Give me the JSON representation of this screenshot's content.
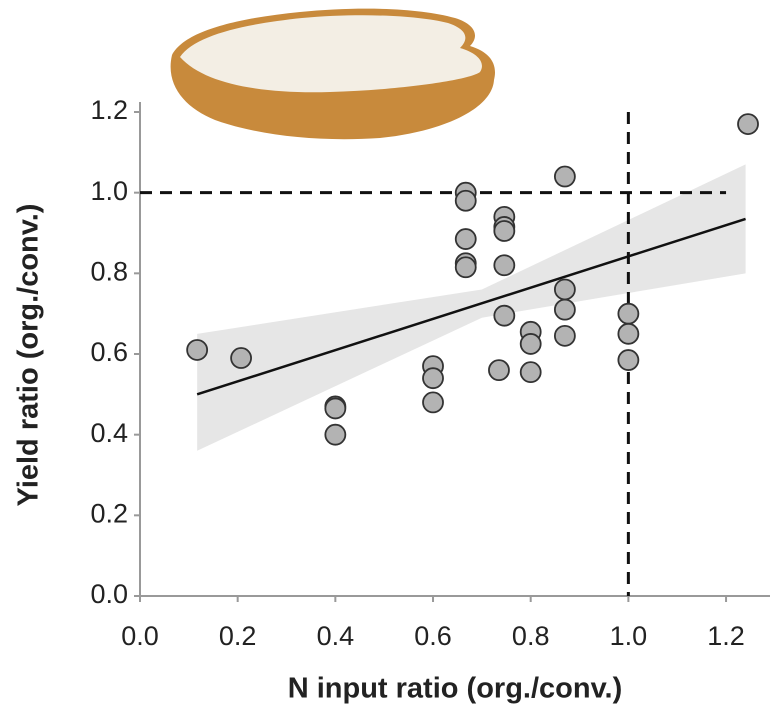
{
  "chart_data": {
    "type": "scatter",
    "xlabel": "N input ratio (org./conv.)",
    "ylabel": "Yield ratio (org./conv.)",
    "x": [
      0.117,
      0.207,
      0.4,
      0.4,
      0.4,
      0.6,
      0.6,
      0.6,
      0.667,
      0.667,
      0.667,
      0.667,
      0.667,
      0.735,
      0.746,
      0.746,
      0.746,
      0.746,
      0.746,
      0.8,
      0.8,
      0.8,
      0.87,
      0.87,
      0.87,
      0.87,
      1.0,
      1.0,
      1.0,
      1.245
    ],
    "values": [
      0.61,
      0.59,
      0.47,
      0.465,
      0.4,
      0.57,
      0.54,
      0.48,
      1.0,
      0.98,
      0.885,
      0.825,
      0.815,
      0.56,
      0.94,
      0.915,
      0.905,
      0.82,
      0.695,
      0.655,
      0.625,
      0.555,
      1.04,
      0.76,
      0.71,
      0.645,
      0.7,
      0.65,
      0.585,
      1.17
    ],
    "color": "#b3b3b3",
    "trend": {
      "x": [
        0.117,
        1.24
      ],
      "y": [
        0.5,
        0.935
      ]
    },
    "band": {
      "x": [
        0.117,
        0.7,
        1.24
      ],
      "lower": [
        0.36,
        0.69,
        0.8
      ],
      "upper": [
        0.65,
        0.76,
        1.07
      ]
    },
    "hline": 1.0,
    "vline": 1.0,
    "xlim": [
      0,
      1.29
    ],
    "ylim": [
      0,
      1.2
    ],
    "xticks": [
      {
        "value": 0,
        "label": "0.0"
      },
      0.2,
      0.4,
      0.6,
      0.8,
      {
        "value": 1,
        "label": "1.0"
      },
      1.2
    ],
    "yticks": [
      {
        "value": 0,
        "label": "0.0"
      },
      0.2,
      0.4,
      0.6,
      0.8,
      {
        "value": 1,
        "label": "1.0"
      },
      1.2
    ]
  }
}
